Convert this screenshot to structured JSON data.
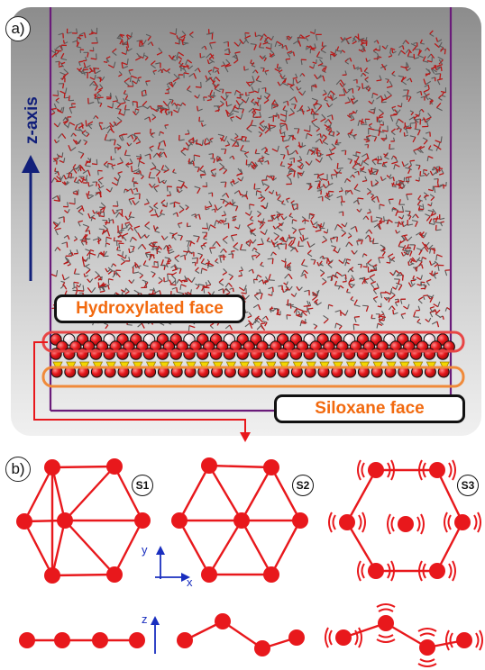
{
  "panels": {
    "a": "a)",
    "b": "b)"
  },
  "labels": {
    "z_axis": "z-axis",
    "hydroxylated": "Hydroxylated face",
    "siloxane": "Siloxane face"
  },
  "structures": [
    "S1",
    "S2",
    "S3"
  ],
  "axes": {
    "y": "y",
    "x": "x",
    "z": "z"
  },
  "colors": {
    "atom_red": "#e8181c",
    "bond_red": "#e8181c",
    "hydroxyl_highlight": "#e84545",
    "siloxane_highlight": "#f08a3a",
    "box_outline": "#6a1b7a",
    "z_arrow": "#12207a",
    "label_orange": "#f26a0f",
    "axis_blue": "#1a2fbf",
    "silicon_yellow": "#f2d600"
  }
}
